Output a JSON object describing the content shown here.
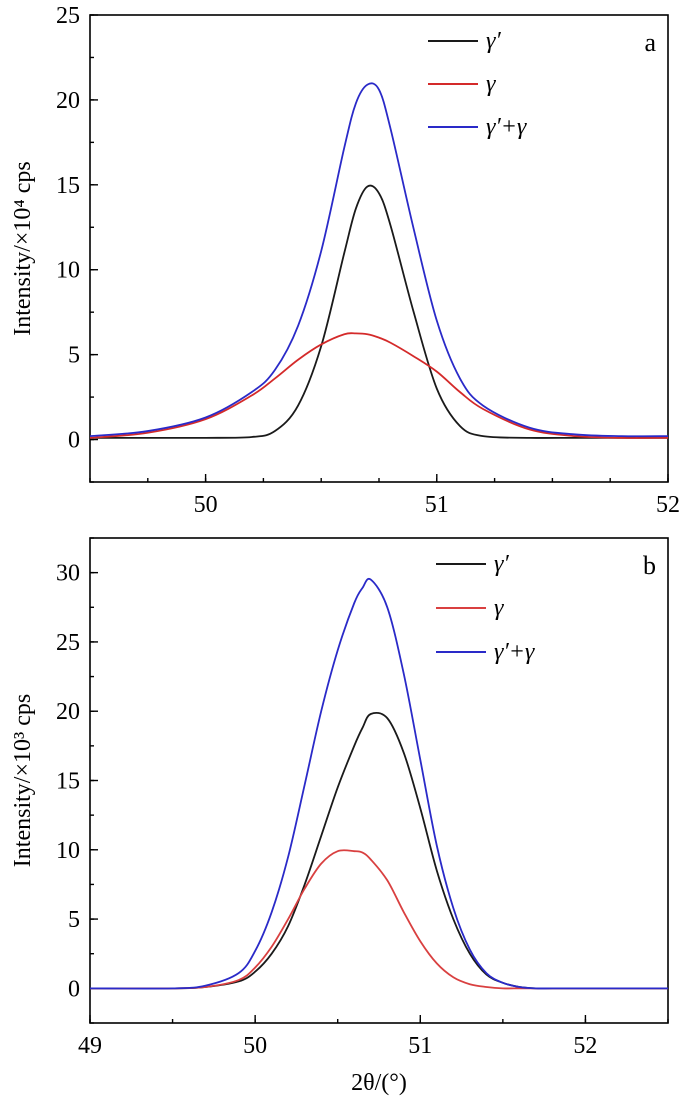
{
  "xlabel": "2θ/(°)",
  "chart_data": [
    {
      "type": "line",
      "panel_label": "a",
      "ylabel": "Intensity/×10⁴ cps",
      "xlim": [
        49.5,
        52
      ],
      "ylim": [
        -2.5,
        25
      ],
      "xticks": [
        50,
        51,
        52
      ],
      "yticks": [
        0,
        5,
        10,
        15,
        20,
        25
      ],
      "legend_position": "top-right",
      "x": [
        49.5,
        49.75,
        50.0,
        50.2,
        50.3,
        50.4,
        50.5,
        50.6,
        50.65,
        50.7,
        50.75,
        50.8,
        50.9,
        51.0,
        51.1,
        51.2,
        51.4,
        51.6,
        51.8,
        52.0
      ],
      "series": [
        {
          "name": "γ′",
          "color": "#1a1a1a",
          "values": [
            0.1,
            0.1,
            0.1,
            0.15,
            0.5,
            2.0,
            5.5,
            11.0,
            13.6,
            14.9,
            14.5,
            12.6,
            7.5,
            3.0,
            0.8,
            0.2,
            0.1,
            0.1,
            0.1,
            0.1
          ]
        },
        {
          "name": "γ",
          "color": "#d42a2a",
          "values": [
            0.1,
            0.4,
            1.2,
            2.6,
            3.6,
            4.7,
            5.6,
            6.2,
            6.25,
            6.2,
            6.0,
            5.7,
            4.9,
            4.0,
            2.8,
            1.8,
            0.6,
            0.2,
            0.1,
            0.1
          ]
        },
        {
          "name": "γ′+γ",
          "color": "#2a2ac8",
          "values": [
            0.2,
            0.5,
            1.3,
            2.8,
            4.1,
            6.7,
            11.1,
            17.2,
            19.8,
            20.9,
            20.6,
            18.3,
            12.4,
            7.0,
            3.6,
            2.0,
            0.7,
            0.3,
            0.2,
            0.2
          ]
        }
      ]
    },
    {
      "type": "line",
      "panel_label": "b",
      "ylabel": "Intensity/×10³ cps",
      "xlim": [
        49,
        52.5
      ],
      "ylim": [
        -2.5,
        32.5
      ],
      "xticks": [
        49,
        50,
        51,
        52
      ],
      "yticks": [
        0,
        5,
        10,
        15,
        20,
        25,
        30
      ],
      "legend_position": "top-right",
      "x": [
        49.0,
        49.5,
        49.7,
        49.9,
        50.0,
        50.1,
        50.2,
        50.3,
        50.4,
        50.5,
        50.6,
        50.65,
        50.7,
        50.8,
        50.9,
        51.0,
        51.1,
        51.2,
        51.3,
        51.4,
        51.5,
        51.6,
        51.7,
        51.8,
        52.0,
        52.5
      ],
      "series": [
        {
          "name": "γ′",
          "color": "#1a1a1a",
          "values": [
            0,
            0,
            0.1,
            0.5,
            1.2,
            2.5,
            4.5,
            7.5,
            11.0,
            14.5,
            17.5,
            18.8,
            19.8,
            19.5,
            17.0,
            13.0,
            8.5,
            5.0,
            2.5,
            1.0,
            0.4,
            0.1,
            0,
            0,
            0,
            0
          ]
        },
        {
          "name": "γ",
          "color": "#d94040",
          "values": [
            0,
            0,
            0.1,
            0.6,
            1.5,
            3.0,
            5.0,
            7.2,
            9.0,
            9.9,
            9.9,
            9.8,
            9.3,
            7.8,
            5.5,
            3.4,
            1.8,
            0.8,
            0.3,
            0.1,
            0,
            0,
            0,
            0,
            0,
            0
          ]
        },
        {
          "name": "γ′+γ",
          "color": "#2a2ac8",
          "values": [
            0,
            0,
            0.2,
            1.1,
            2.7,
            5.5,
            9.5,
            14.7,
            20.0,
            24.4,
            27.8,
            28.9,
            29.5,
            27.5,
            22.7,
            16.5,
            10.3,
            5.8,
            2.8,
            1.1,
            0.4,
            0.1,
            0,
            0,
            0,
            0
          ]
        }
      ]
    }
  ]
}
